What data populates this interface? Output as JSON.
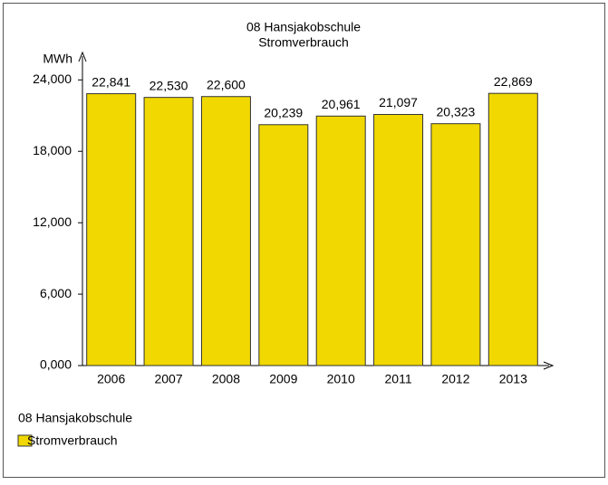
{
  "chart_data": {
    "type": "bar",
    "title": "08 Hansjakobschule",
    "subtitle": "Stromverbrauch",
    "y_label": "MWh",
    "categories": [
      "2006",
      "2007",
      "2008",
      "2009",
      "2010",
      "2011",
      "2012",
      "2013"
    ],
    "series": [
      {
        "name": "Stromverbrauch",
        "color": "#f0d800",
        "values": [
          22841,
          22530,
          22600,
          20239,
          20961,
          21097,
          20323,
          22869
        ],
        "value_labels": [
          "22,841",
          "22,530",
          "22,600",
          "20,239",
          "20,961",
          "21,097",
          "20,323",
          "22,869"
        ]
      }
    ],
    "ylim": [
      0,
      26000
    ],
    "yticks": [
      {
        "value": 0,
        "label": "0,000"
      },
      {
        "value": 6000,
        "label": "6,000"
      },
      {
        "value": 12000,
        "label": "12,000"
      },
      {
        "value": 18000,
        "label": "18,000"
      },
      {
        "value": 24000,
        "label": "24,000"
      }
    ],
    "legend_title": "08 Hansjakobschule"
  }
}
